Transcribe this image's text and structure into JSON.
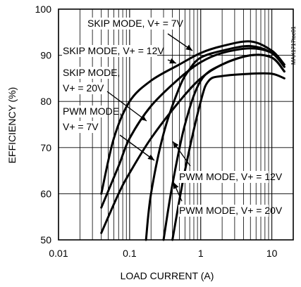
{
  "chart_data": {
    "type": "line",
    "xlabel": "LOAD CURRENT (A)",
    "ylabel": "EFFICIENCY (%)",
    "x_scale": "log",
    "xlim": [
      0.01,
      20
    ],
    "ylim": [
      50,
      100
    ],
    "x_ticks": [
      {
        "value": 0.01,
        "label": "0.01"
      },
      {
        "value": 0.1,
        "label": "0.1"
      },
      {
        "value": 1,
        "label": "1"
      },
      {
        "value": 10,
        "label": "10"
      }
    ],
    "y_ticks": [
      {
        "value": 50,
        "label": "50"
      },
      {
        "value": 60,
        "label": "60"
      },
      {
        "value": 70,
        "label": "70"
      },
      {
        "value": 80,
        "label": "80"
      },
      {
        "value": 90,
        "label": "90"
      },
      {
        "value": 100,
        "label": "100"
      }
    ],
    "grid": true,
    "part_number": "MAX1717toc01",
    "series": [
      {
        "name": "SKIP MODE, V+ = 7V",
        "x": [
          0.04,
          0.06,
          0.1,
          0.2,
          0.5,
          1,
          2,
          5,
          10,
          15
        ],
        "y": [
          60,
          72,
          80,
          84.5,
          88,
          90.5,
          92,
          93,
          91,
          88
        ]
      },
      {
        "name": "SKIP MODE, V+ = 12V",
        "x": [
          0.04,
          0.07,
          0.1,
          0.2,
          0.5,
          1,
          2,
          5,
          10,
          15
        ],
        "y": [
          57,
          66,
          72,
          79,
          85,
          88.5,
          90.5,
          91.5,
          90.5,
          87.5
        ]
      },
      {
        "name": "SKIP MODE, V+ = 20V",
        "x": [
          0.04,
          0.07,
          0.1,
          0.2,
          0.5,
          1,
          2,
          5,
          10,
          15
        ],
        "y": [
          51.5,
          60,
          64.5,
          72,
          80,
          85,
          88,
          90,
          89.5,
          86.5
        ]
      },
      {
        "name": "PWM MODE, V+ = 7V",
        "x": [
          0.17,
          0.2,
          0.3,
          0.5,
          0.7,
          1,
          2,
          5,
          10,
          15
        ],
        "y": [
          50,
          60,
          73,
          83,
          87,
          89.5,
          91,
          92,
          90.5,
          87.5
        ]
      },
      {
        "name": "PWM MODE, V+ = 12V",
        "x": [
          0.3,
          0.4,
          0.6,
          1,
          2,
          5,
          10,
          15
        ],
        "y": [
          50,
          62,
          75,
          84.5,
          88,
          90,
          89.5,
          86.5
        ]
      },
      {
        "name": "PWM MODE, V+ = 20V",
        "x": [
          0.4,
          0.6,
          1,
          1.3,
          2,
          5,
          10,
          15
        ],
        "y": [
          50,
          65,
          80,
          84.5,
          85.5,
          86,
          86,
          85
        ]
      }
    ],
    "annotations": [
      {
        "lines": [
          "SKIP MODE, V+ = 7V"
        ],
        "series": 0
      },
      {
        "lines": [
          "SKIP MODE, V+ = 12V"
        ],
        "series": 1
      },
      {
        "lines": [
          "SKIP MODE,",
          "V+ = 20V"
        ],
        "series": 2
      },
      {
        "lines": [
          "PWM MODE,",
          "V+ = 7V"
        ],
        "series": 3
      },
      {
        "lines": [
          "PWM MODE, V+ = 12V"
        ],
        "series": 4
      },
      {
        "lines": [
          "PWM MODE, V+ = 20V"
        ],
        "series": 5
      }
    ]
  }
}
